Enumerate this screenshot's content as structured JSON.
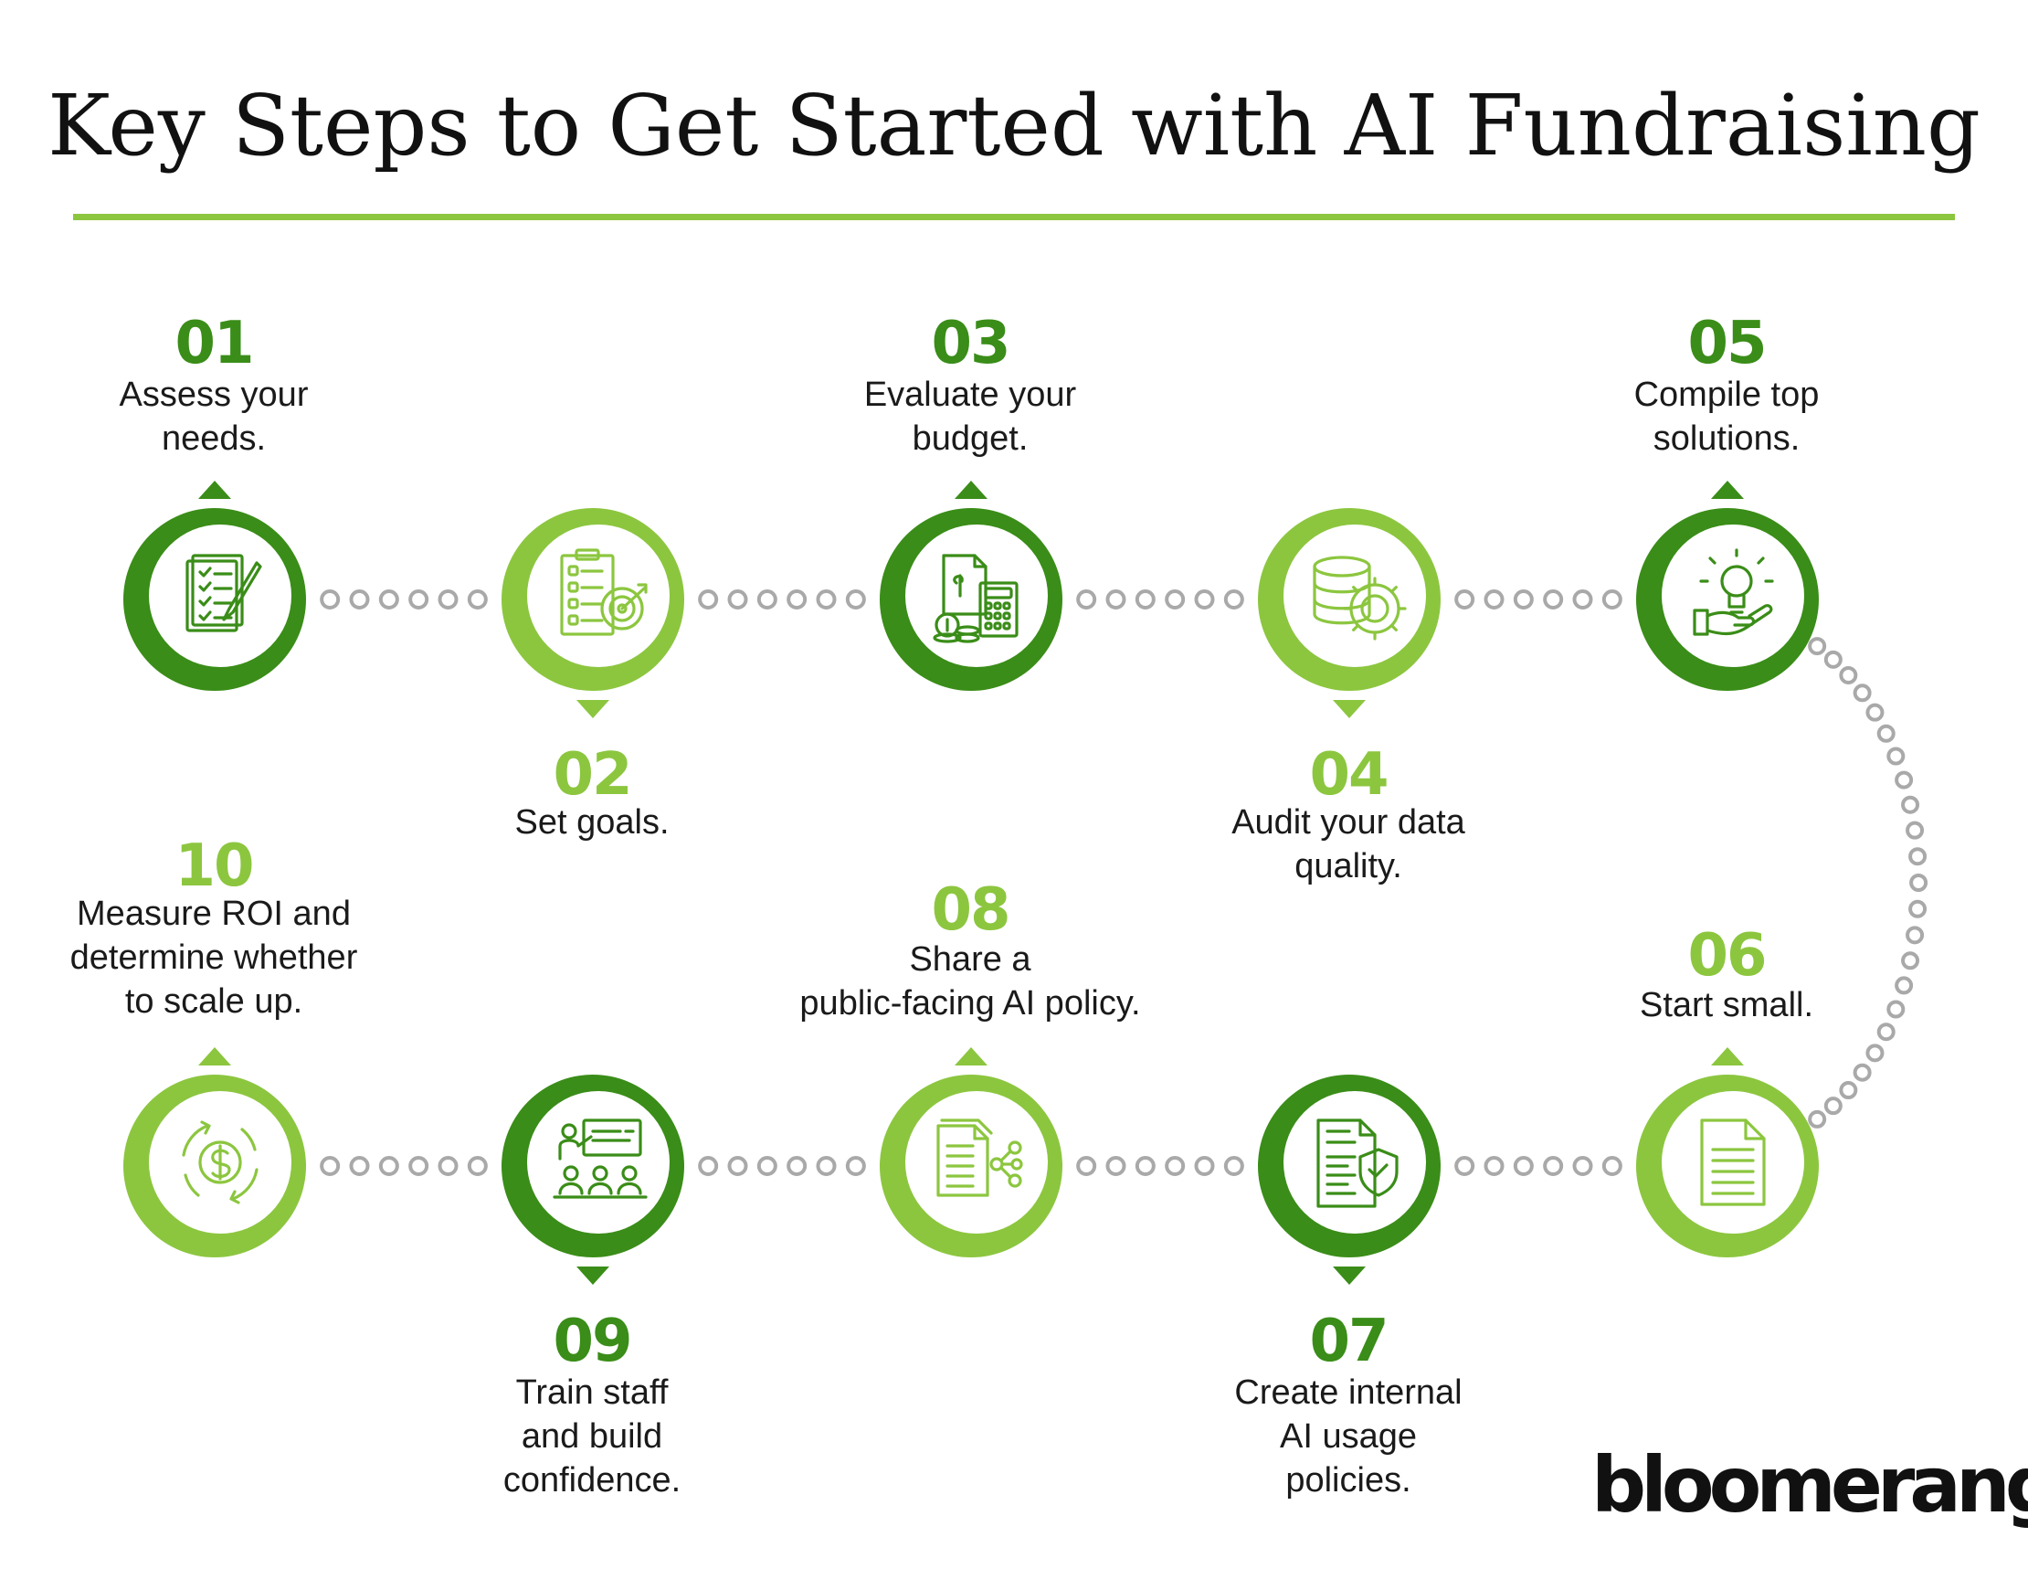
{
  "title": "Key Steps to Get Started with AI Fundraising",
  "brand": "bloomerang",
  "colors": {
    "dark_green": "#3a8d18",
    "light_green": "#8cc63f",
    "connector_gray": "#a9a9a9",
    "rule": "#8cc63f"
  },
  "steps": [
    {
      "number": "01",
      "text": "Assess your\nneeds.",
      "icon": "checklist-pen-icon",
      "tone": "dark"
    },
    {
      "number": "02",
      "text": "Set goals.",
      "icon": "target-clipboard-icon",
      "tone": "light"
    },
    {
      "number": "03",
      "text": "Evaluate your\nbudget.",
      "icon": "budget-calculator-icon",
      "tone": "dark"
    },
    {
      "number": "04",
      "text": "Audit your data\nquality.",
      "icon": "database-gear-icon",
      "tone": "light"
    },
    {
      "number": "05",
      "text": "Compile top\nsolutions.",
      "icon": "lightbulb-hand-icon",
      "tone": "dark"
    },
    {
      "number": "06",
      "text": "Start small.",
      "icon": "document-icon",
      "tone": "light"
    },
    {
      "number": "07",
      "text": "Create internal\nAI usage\npolicies.",
      "icon": "policy-shield-icon",
      "tone": "dark"
    },
    {
      "number": "08",
      "text": "Share a\npublic-facing AI policy.",
      "icon": "document-share-icon",
      "tone": "light"
    },
    {
      "number": "09",
      "text": "Train staff\nand build\nconfidence.",
      "icon": "training-presentation-icon",
      "tone": "dark"
    },
    {
      "number": "10",
      "text": "Measure ROI and\ndetermine whether\nto scale up.",
      "icon": "dollar-cycle-icon",
      "tone": "light"
    }
  ]
}
